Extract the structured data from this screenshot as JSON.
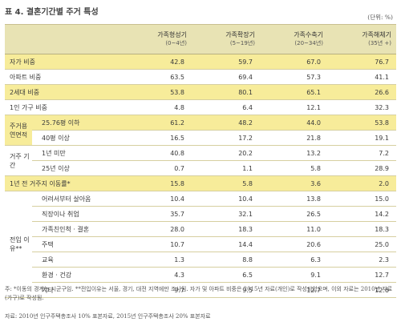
{
  "title": "표 4. 결혼기간별 주거 특성",
  "unit": "(단위: %)",
  "headers": [
    {
      "label": "가족형성기",
      "sub": "(0~4년)"
    },
    {
      "label": "가족확장기",
      "sub": "(5~19년)"
    },
    {
      "label": "가족수축기",
      "sub": "(20~34년)"
    },
    {
      "label": "가족해체기",
      "sub": "(35년 +)"
    }
  ],
  "rows": {
    "own": {
      "label": "자가 비중",
      "values": [
        "42.8",
        "59.7",
        "67.0",
        "76.7"
      ]
    },
    "apt": {
      "label": "아파트 비중",
      "values": [
        "63.5",
        "69.4",
        "57.3",
        "41.1"
      ]
    },
    "gen2": {
      "label": "2세대 비중",
      "values": [
        "53.8",
        "80.1",
        "65.1",
        "26.6"
      ]
    },
    "single": {
      "label": "1인 가구 비중",
      "values": [
        "4.8",
        "6.4",
        "12.1",
        "32.3"
      ]
    },
    "area_group": "주거용 연면적",
    "area_a": {
      "label": "25.76평 이하",
      "values": [
        "61.2",
        "48.2",
        "44.0",
        "53.8"
      ]
    },
    "area_b": {
      "label": "40평 이상",
      "values": [
        "16.5",
        "17.2",
        "21.8",
        "19.1"
      ]
    },
    "period_group": "거주 기간",
    "period_a": {
      "label": "1년 미만",
      "values": [
        "40.8",
        "20.2",
        "13.2",
        "7.2"
      ]
    },
    "period_b": {
      "label": "25년 이상",
      "values": [
        "0.7",
        "1.1",
        "5.8",
        "28.9"
      ]
    },
    "moved": {
      "label": "1년 전 거주지 이동률*",
      "values": [
        "15.8",
        "5.8",
        "3.6",
        "2.0"
      ]
    },
    "reason_group": "전입 이유**",
    "reasons": [
      {
        "label": "어려서부터 살아옴",
        "values": [
          "10.4",
          "10.4",
          "13.8",
          "15.0"
        ]
      },
      {
        "label": "직장이나 취업",
        "values": [
          "35.7",
          "32.1",
          "26.5",
          "14.2"
        ]
      },
      {
        "label": "가족친인척 · 결혼",
        "values": [
          "28.0",
          "18.3",
          "11.0",
          "18.3"
        ]
      },
      {
        "label": "주택",
        "values": [
          "10.7",
          "14.4",
          "20.6",
          "25.0"
        ]
      },
      {
        "label": "교육",
        "values": [
          "1.3",
          "8.8",
          "6.3",
          "2.3"
        ]
      },
      {
        "label": "환경 · 건강",
        "values": [
          "4.3",
          "6.5",
          "9.1",
          "12.7"
        ]
      },
      {
        "label": "기타",
        "values": [
          "9.7",
          "9.5",
          "12.7",
          "12.6"
        ]
      }
    ]
  },
  "note": "주: *이동의 경계는 시군구임. **전입이유는 서울, 경기, 대전 지역에만 조사됨. 자가 및 아파트 비중은 2015년 자료(개인)로 작성되었으며, 이외 자료는 2010년 자료(가구)로 작성됨.",
  "source": "자료: 2010년 인구주택총조사 10% 표본자료, 2015년 인구주택총조사 20% 표본자료"
}
